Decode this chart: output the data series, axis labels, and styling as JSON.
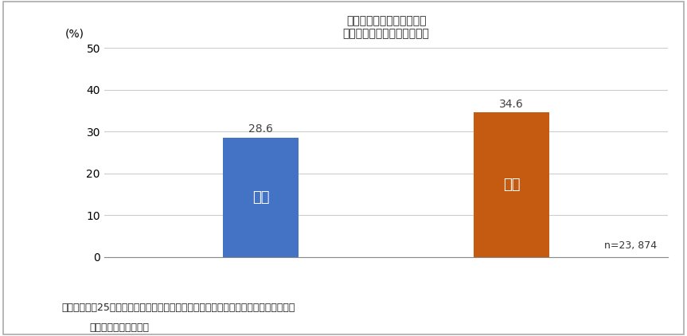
{
  "title_line1": "地域のボランティア活動や",
  "title_line2": "趣味のグループへの参加状況",
  "categories": [
    "男性",
    "女性"
  ],
  "values": [
    28.6,
    34.6
  ],
  "bar_colors": [
    "#4472C4",
    "#C55A11"
  ],
  "ylabel": "(%)",
  "ylim": [
    0,
    50
  ],
  "yticks": [
    0,
    10,
    20,
    30,
    40,
    50
  ],
  "n_label": "n=23, 874",
  "citation_line1": "出典：「平成25年度　都民の健康や地域とのつながりに関する意識・活動状況調査」",
  "citation_line2": "（東京都福祉保健局）",
  "background_color": "#FFFFFF",
  "plot_bg_color": "#FFFFFF",
  "border_color": "#AAAAAA",
  "grid_color": "#CCCCCC",
  "bar_label_color_outside": "#404040",
  "bar_label_color_inside": "#FFFFFF",
  "bar_width": 0.12,
  "bar_positions": [
    0.3,
    0.7
  ],
  "title_fontsize": 13,
  "axis_fontsize": 10,
  "label_fontsize": 13,
  "bar_label_fontsize": 10,
  "citation_fontsize": 9,
  "n_label_fontsize": 9
}
